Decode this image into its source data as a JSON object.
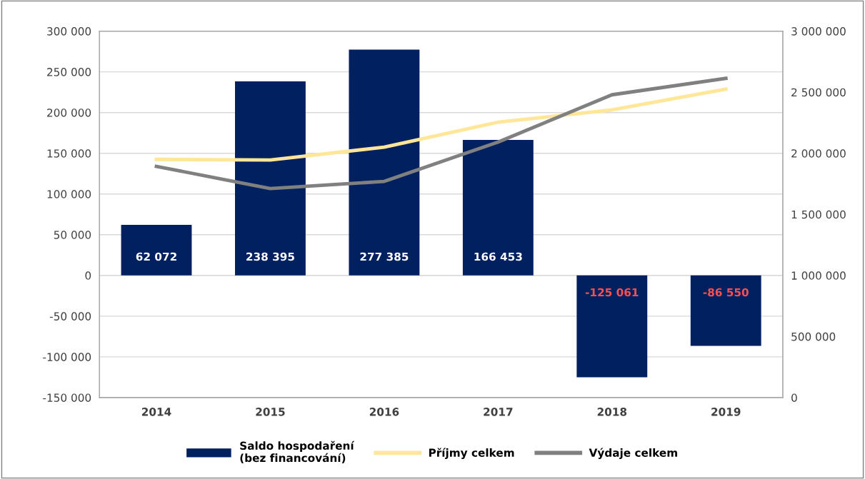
{
  "chart_data": {
    "type": "bar",
    "categories": [
      "2014",
      "2015",
      "2016",
      "2017",
      "2018",
      "2019"
    ],
    "series": [
      {
        "name": "Saldo hospodaření\n(bez financování)",
        "color": "#002060",
        "values": [
          62072,
          238395,
          277385,
          166453,
          -125061,
          -86550
        ],
        "value_labels": [
          "62 072",
          "238 395",
          "277 385",
          "166 453",
          "-125 061",
          "-86 550"
        ]
      },
      {
        "name": "Příjmy celkem",
        "type": "line",
        "axis": "y2",
        "color": "#ffe699",
        "values": [
          1950000,
          1945000,
          2050000,
          2255000,
          2355000,
          2525000
        ]
      },
      {
        "name": "Výdaje celkem",
        "type": "line",
        "axis": "y2",
        "color": "#808080",
        "values": [
          1893000,
          1711000,
          1770000,
          2092000,
          2479000,
          2613000
        ]
      }
    ],
    "ylim": [
      -150000,
      300000
    ],
    "yticks": [
      {
        "value": -150000,
        "label": "-150 000"
      },
      {
        "value": -100000,
        "label": "-100 000"
      },
      {
        "value": -50000,
        "label": "-50 000"
      },
      0,
      {
        "value": 50000,
        "label": "50 000"
      },
      {
        "value": 100000,
        "label": "100 000"
      },
      {
        "value": 150000,
        "label": "150 000"
      },
      {
        "value": 200000,
        "label": "200 000"
      },
      {
        "value": 250000,
        "label": "250 000"
      },
      {
        "value": 300000,
        "label": "300 000"
      }
    ],
    "y2lim": [
      0,
      3000000
    ],
    "y2ticks": [
      0,
      {
        "value": 500000,
        "label": "500 000"
      },
      {
        "value": 1000000,
        "label": "1 000 000"
      },
      {
        "value": 1500000,
        "label": "1 500 000"
      },
      {
        "value": 2000000,
        "label": "2 000 000"
      },
      {
        "value": 2500000,
        "label": "2 500 000"
      },
      {
        "value": 3000000,
        "label": "3 000 000"
      }
    ],
    "grid": "y",
    "legend": "bottom",
    "marker": "none",
    "line_style": "solid"
  }
}
